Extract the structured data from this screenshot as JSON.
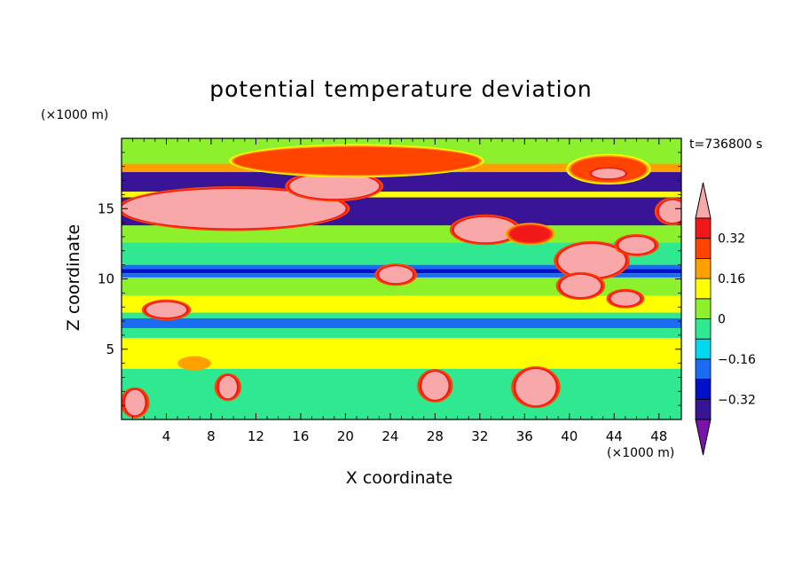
{
  "chart_data": {
    "type": "heatmap",
    "title": "potential temperature deviation",
    "xlabel": "X coordinate",
    "ylabel": "Z coordinate",
    "x_unit": "(×1000 m)",
    "y_unit": "(×1000 m)",
    "time_label": "t=736800 s",
    "xlim": [
      0,
      50
    ],
    "ylim": [
      0,
      20
    ],
    "x_ticks": [
      4,
      8,
      12,
      16,
      20,
      24,
      28,
      32,
      36,
      40,
      44,
      48
    ],
    "y_ticks": [
      5,
      10,
      15
    ],
    "colorbar": {
      "levels": [
        -0.4,
        -0.32,
        -0.24,
        -0.16,
        -0.08,
        0,
        0.08,
        0.16,
        0.24,
        0.32,
        0.4
      ],
      "labeled_ticks": [
        0.32,
        0.16,
        0,
        -0.16,
        -0.32
      ],
      "labels": [
        "0.32",
        "0.16",
        "0",
        "−0.16",
        "−0.32"
      ],
      "colors": [
        "#7a13a8",
        "#3a1496",
        "#0010c8",
        "#1c6cf2",
        "#00d8f0",
        "#30e890",
        "#8cf02c",
        "#ffff00",
        "#ffa000",
        "#ff4400",
        "#f01818",
        "#f8a8a8"
      ],
      "extend": "both"
    },
    "bands": [
      {
        "z0": 18.2,
        "z1": 20.0,
        "v": 0.04
      },
      {
        "z0": 17.6,
        "z1": 18.2,
        "v": 0.2
      },
      {
        "z0": 16.2,
        "z1": 17.6,
        "v": -0.36
      },
      {
        "z0": 15.8,
        "z1": 16.2,
        "v": 0.12
      },
      {
        "z0": 13.8,
        "z1": 15.8,
        "v": -0.36
      },
      {
        "z0": 12.6,
        "z1": 13.8,
        "v": 0.04
      },
      {
        "z0": 11.0,
        "z1": 12.6,
        "v": -0.04
      },
      {
        "z0": 10.7,
        "z1": 11.0,
        "v": -0.2
      },
      {
        "z0": 10.4,
        "z1": 10.7,
        "v": -0.32
      },
      {
        "z0": 10.1,
        "z1": 10.4,
        "v": -0.2
      },
      {
        "z0": 8.8,
        "z1": 10.1,
        "v": 0.04
      },
      {
        "z0": 7.6,
        "z1": 8.8,
        "v": 0.12
      },
      {
        "z0": 7.2,
        "z1": 7.6,
        "v": -0.04
      },
      {
        "z0": 6.5,
        "z1": 7.2,
        "v": -0.2
      },
      {
        "z0": 5.8,
        "z1": 6.5,
        "v": -0.04
      },
      {
        "z0": 3.6,
        "z1": 5.8,
        "v": 0.12
      },
      {
        "z0": 0.0,
        "z1": 3.6,
        "v": -0.04
      }
    ],
    "blobs": [
      {
        "x": 10.0,
        "z": 15.0,
        "rx": 10.0,
        "rz": 1.4,
        "v": 0.44
      },
      {
        "x": 19.0,
        "z": 16.6,
        "rx": 4.0,
        "rz": 0.9,
        "v": 0.44
      },
      {
        "x": 21.0,
        "z": 18.4,
        "rx": 11.0,
        "rz": 1.0,
        "v": 0.28
      },
      {
        "x": 43.5,
        "z": 17.8,
        "rx": 3.4,
        "rz": 0.9,
        "v": 0.28
      },
      {
        "x": 43.5,
        "z": 17.5,
        "rx": 1.5,
        "rz": 0.35,
        "v": 0.44
      },
      {
        "x": 32.5,
        "z": 13.5,
        "rx": 2.8,
        "rz": 0.9,
        "v": 0.44
      },
      {
        "x": 36.5,
        "z": 13.2,
        "rx": 1.8,
        "rz": 0.6,
        "v": 0.36
      },
      {
        "x": 42.0,
        "z": 11.3,
        "rx": 3.0,
        "rz": 1.2,
        "v": 0.44
      },
      {
        "x": 46.0,
        "z": 12.4,
        "rx": 1.6,
        "rz": 0.6,
        "v": 0.44
      },
      {
        "x": 41.0,
        "z": 9.5,
        "rx": 1.8,
        "rz": 0.8,
        "v": 0.44
      },
      {
        "x": 45.0,
        "z": 8.6,
        "rx": 1.3,
        "rz": 0.5,
        "v": 0.44
      },
      {
        "x": 24.5,
        "z": 10.3,
        "rx": 1.5,
        "rz": 0.6,
        "v": 0.44
      },
      {
        "x": 4.0,
        "z": 7.8,
        "rx": 1.8,
        "rz": 0.55,
        "v": 0.44
      },
      {
        "x": 6.5,
        "z": 4.0,
        "rx": 1.5,
        "rz": 0.5,
        "v": 0.2
      },
      {
        "x": 49.2,
        "z": 14.8,
        "rx": 1.2,
        "rz": 0.8,
        "v": 0.44
      },
      {
        "x": 37.0,
        "z": 2.3,
        "rx": 1.8,
        "rz": 1.3,
        "v": 0.44
      },
      {
        "x": 28.0,
        "z": 2.4,
        "rx": 1.2,
        "rz": 1.0,
        "v": 0.44
      },
      {
        "x": 1.2,
        "z": 1.2,
        "rx": 0.9,
        "rz": 0.9,
        "v": 0.44
      },
      {
        "x": 9.5,
        "z": 2.3,
        "rx": 0.8,
        "rz": 0.8,
        "v": 0.44
      }
    ]
  }
}
